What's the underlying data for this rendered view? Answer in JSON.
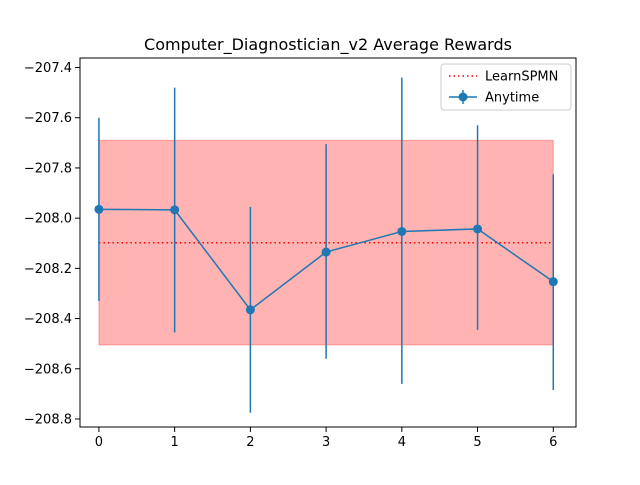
{
  "chart_data": {
    "type": "line",
    "title": "Computer_Diagnostician_v2 Average Rewards",
    "xlabel": "",
    "ylabel": "",
    "x": [
      0,
      1,
      2,
      3,
      4,
      5,
      6
    ],
    "xlim": [
      -0.25,
      6.3
    ],
    "ylim": [
      -208.832,
      -207.362
    ],
    "x_ticks": [
      0,
      1,
      2,
      3,
      4,
      5,
      6
    ],
    "x_tick_labels": [
      "0",
      "1",
      "2",
      "3",
      "4",
      "5",
      "6"
    ],
    "y_ticks": [
      -207.4,
      -207.6,
      -207.8,
      -208.0,
      -208.2,
      -208.4,
      -208.6,
      -208.8
    ],
    "y_tick_labels": [
      "−207.4",
      "−207.6",
      "−207.8",
      "−208.0",
      "−208.2",
      "−208.4",
      "−208.6",
      "−208.8"
    ],
    "grid": false,
    "legend_position": "top-right",
    "series": [
      {
        "name": "Anytime",
        "kind": "errorbar-line",
        "color": "#1f77b4",
        "values": [
          -207.965,
          -207.967,
          -208.365,
          -208.135,
          -208.053,
          -208.043,
          -208.253
        ],
        "err_low": [
          -208.33,
          -208.455,
          -208.775,
          -208.56,
          -208.66,
          -208.445,
          -208.685
        ],
        "err_high": [
          -207.6,
          -207.48,
          -207.955,
          -207.705,
          -207.44,
          -207.63,
          -207.825
        ]
      },
      {
        "name": "LearnSPMN",
        "kind": "hline",
        "color": "#ff0000",
        "value": -208.098,
        "band_low": -208.505,
        "band_high": -207.69,
        "band_x": [
          0,
          6
        ],
        "band_color": "#ff9999"
      }
    ],
    "legend": [
      {
        "label": "LearnSPMN",
        "style": "dotted-line",
        "color": "#ff0000"
      },
      {
        "label": "Anytime",
        "style": "errorbar-marker",
        "color": "#1f77b4"
      }
    ]
  }
}
